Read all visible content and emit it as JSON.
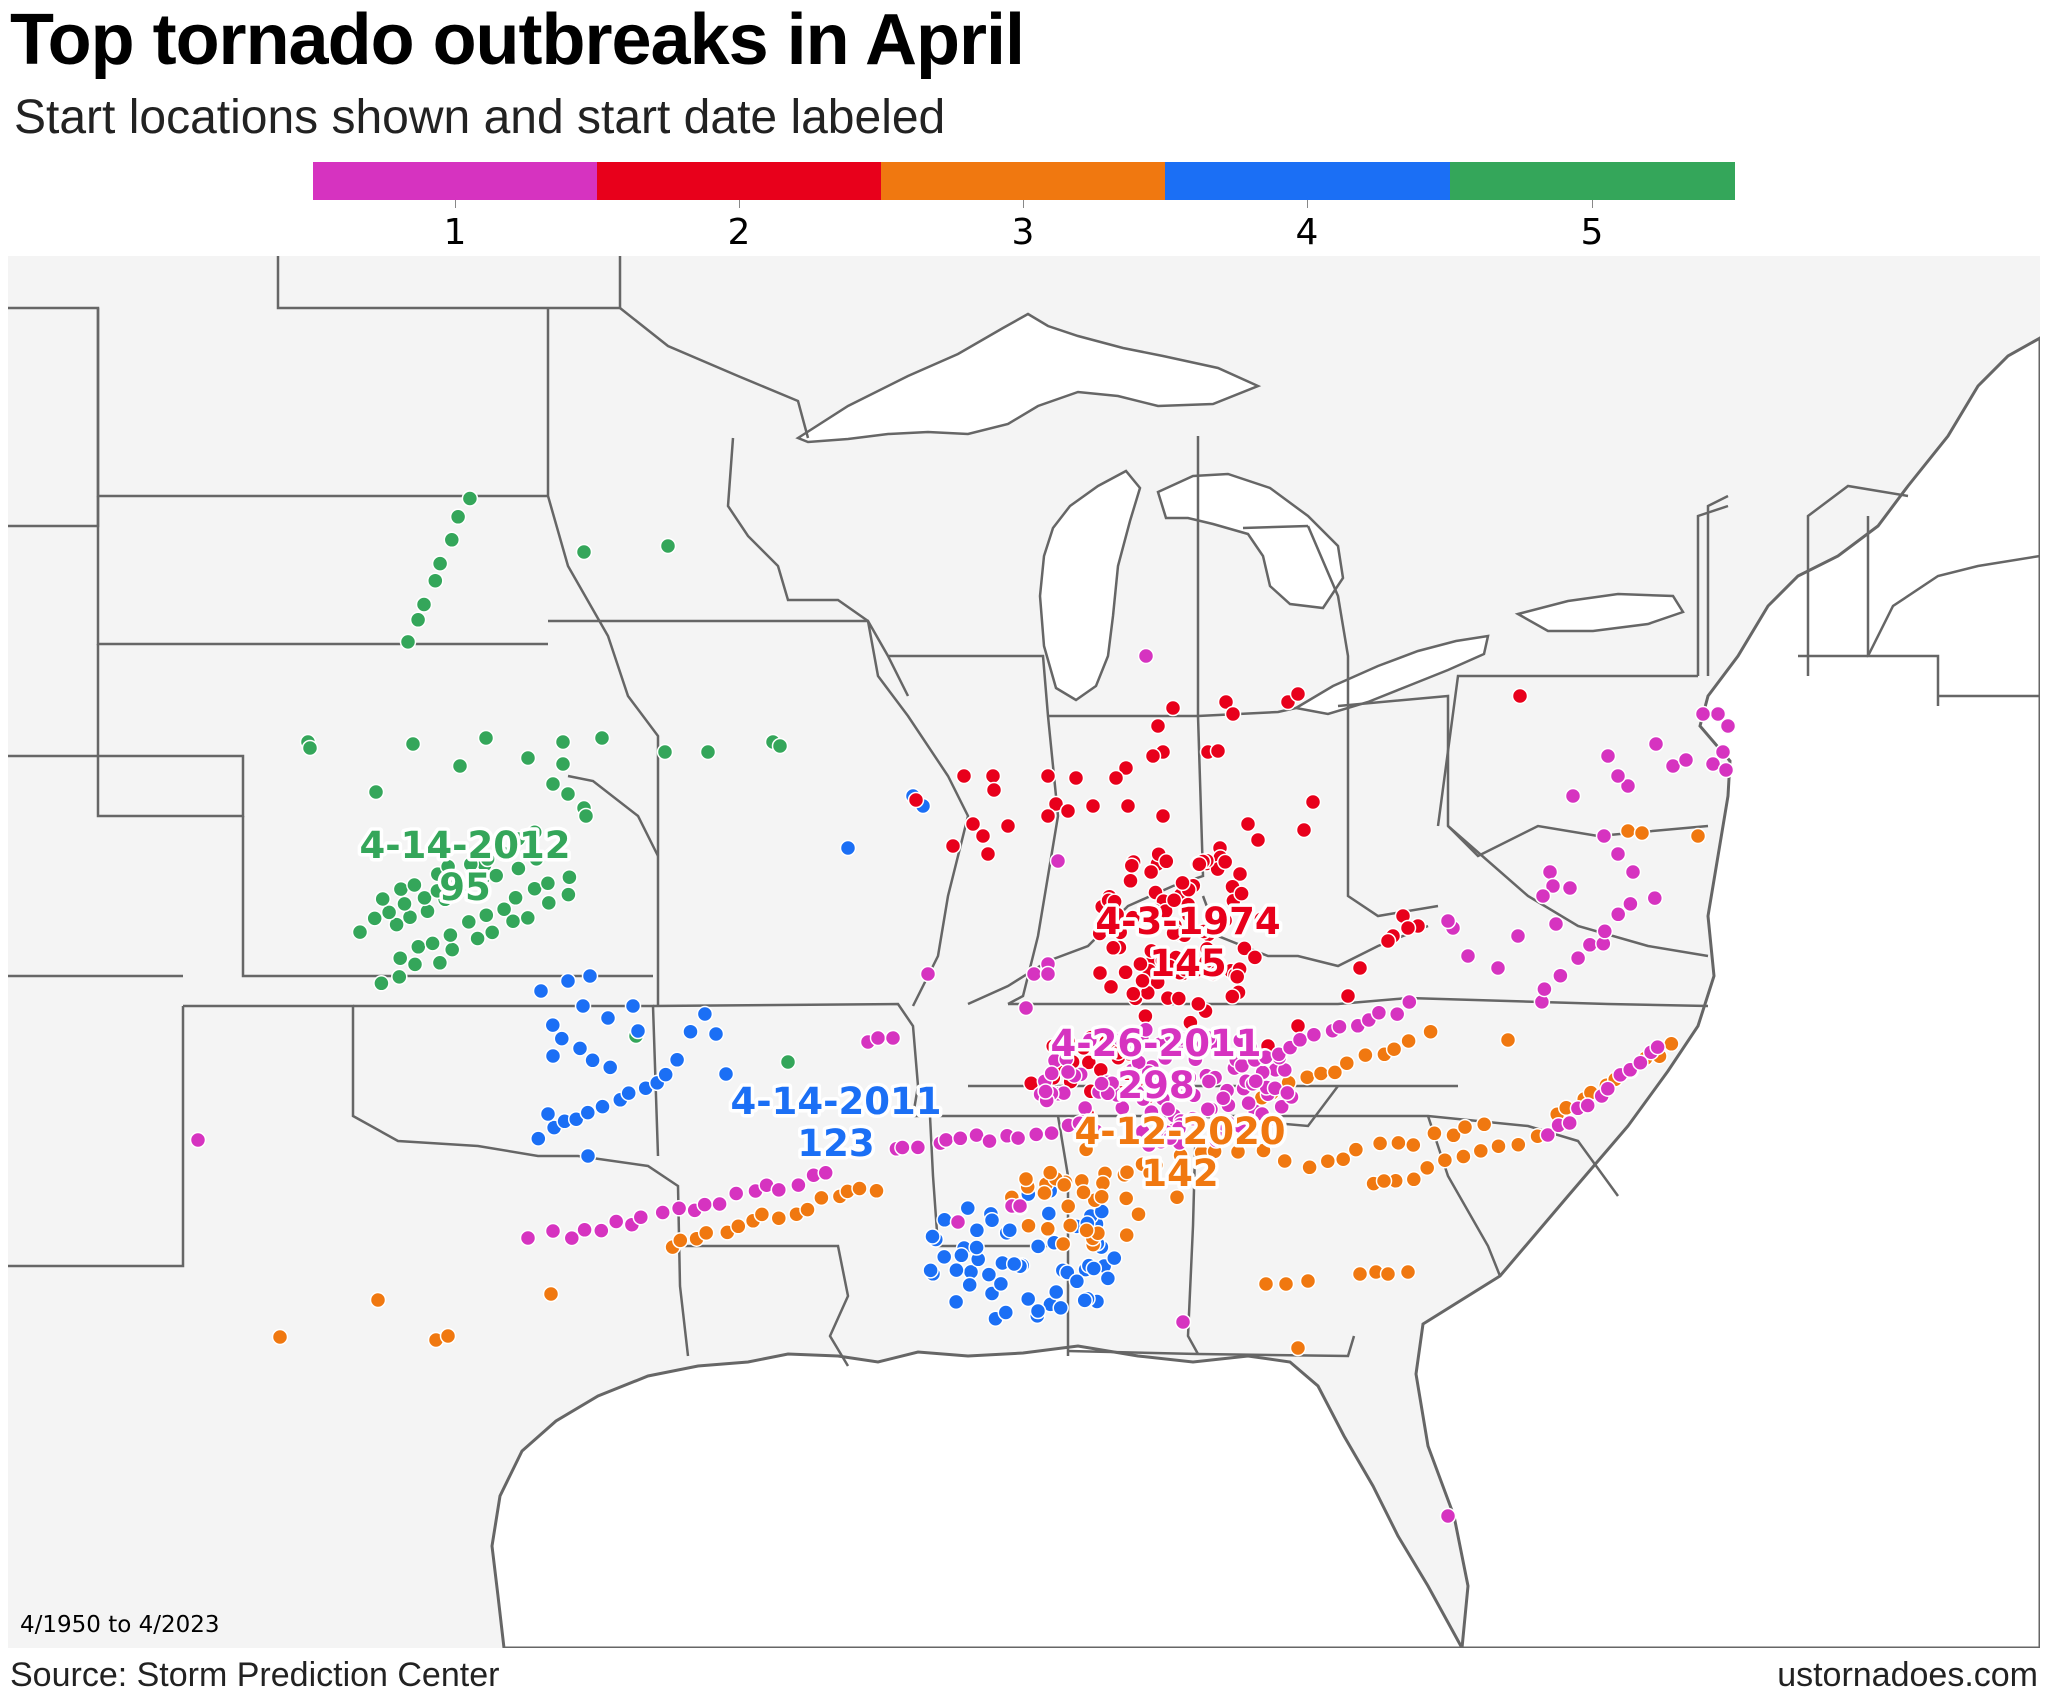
{
  "title": "Top tornado outbreaks in April",
  "subtitle": "Start locations shown and start date labeled",
  "legend": [
    {
      "rank": "1",
      "color": "#d633c0"
    },
    {
      "rank": "2",
      "color": "#e8001b"
    },
    {
      "rank": "3",
      "color": "#f07810"
    },
    {
      "rank": "4",
      "color": "#1b6ff5"
    },
    {
      "rank": "5",
      "color": "#34a65a"
    }
  ],
  "outbreaks": [
    {
      "rank": 1,
      "date": "4-26-2011",
      "count": "298",
      "color": "#d633c0"
    },
    {
      "rank": 2,
      "date": "4-3-1974",
      "count": "145",
      "color": "#e8001b"
    },
    {
      "rank": 3,
      "date": "4-12-2020",
      "count": "142",
      "color": "#f07810"
    },
    {
      "rank": 4,
      "date": "4-14-2011",
      "count": "123",
      "color": "#1b6ff5"
    },
    {
      "rank": 5,
      "date": "4-14-2012",
      "count": "95",
      "color": "#34a65a"
    }
  ],
  "map_colors": {
    "land": "#f4f4f4",
    "water": "#ffffff",
    "border": "#666666"
  },
  "footnote": "4/1950 to 4/2023",
  "source": "Source: Storm Prediction Center",
  "site": "ustornadoes.com"
}
